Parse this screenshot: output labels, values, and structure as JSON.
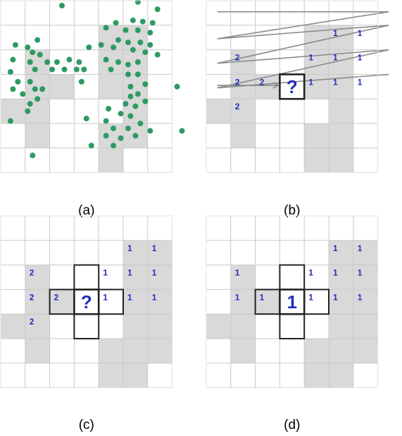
{
  "figure": {
    "colors": {
      "shaded": "#d9d9d9",
      "grid": "#c9c9c9",
      "dot": "#2e9a62",
      "label": "#1f2fb8",
      "path": "#8a8a8a",
      "outline": "#222222"
    },
    "grid_cols": 7,
    "grid_rows": 7,
    "panels": [
      {
        "caption": "(a)",
        "shaded": [
          [
            4,
            1
          ],
          [
            5,
            1
          ],
          [
            1,
            2
          ],
          [
            4,
            2
          ],
          [
            5,
            2
          ],
          [
            1,
            3
          ],
          [
            2,
            3
          ],
          [
            4,
            3
          ],
          [
            5,
            3
          ],
          [
            0,
            4
          ],
          [
            1,
            4
          ],
          [
            5,
            4
          ],
          [
            1,
            5
          ],
          [
            4,
            5
          ],
          [
            5,
            5
          ],
          [
            4,
            6
          ]
        ],
        "dots": [
          [
            2.5,
            0.2
          ],
          [
            5.6,
            0.05
          ],
          [
            6.4,
            0.35
          ],
          [
            4.7,
            0.9
          ],
          [
            5.4,
            0.8
          ],
          [
            5.8,
            0.85
          ],
          [
            6.2,
            0.9
          ],
          [
            4.3,
            1.1
          ],
          [
            5.1,
            1.2
          ],
          [
            5.6,
            1.2
          ],
          [
            6.1,
            1.3
          ],
          [
            1.5,
            1.6
          ],
          [
            4.8,
            1.6
          ],
          [
            5.2,
            1.7
          ],
          [
            5.7,
            1.7
          ],
          [
            6.1,
            1.8
          ],
          [
            0.6,
            1.8
          ],
          [
            1.1,
            1.9
          ],
          [
            4.1,
            1.8
          ],
          [
            4.6,
            1.9
          ],
          [
            5.4,
            2.0
          ],
          [
            5.9,
            2.1
          ],
          [
            6.4,
            2.2
          ],
          [
            3.6,
            1.9
          ],
          [
            1.3,
            2.1
          ],
          [
            1.6,
            2.2
          ],
          [
            0.5,
            2.4
          ],
          [
            1.2,
            2.5
          ],
          [
            1.9,
            2.5
          ],
          [
            2.3,
            2.5
          ],
          [
            2.8,
            2.4
          ],
          [
            3.2,
            2.5
          ],
          [
            4.3,
            2.4
          ],
          [
            4.8,
            2.5
          ],
          [
            5.2,
            2.6
          ],
          [
            5.6,
            2.5
          ],
          [
            1.4,
            2.8
          ],
          [
            2.1,
            2.8
          ],
          [
            2.6,
            2.8
          ],
          [
            3.1,
            2.8
          ],
          [
            3.4,
            2.8
          ],
          [
            4.5,
            2.8
          ],
          [
            0.4,
            2.9
          ],
          [
            5.2,
            3.0
          ],
          [
            5.6,
            3.0
          ],
          [
            0.7,
            3.3
          ],
          [
            1.2,
            3.3
          ],
          [
            3.3,
            3.3
          ],
          [
            0.5,
            3.6
          ],
          [
            1.4,
            3.6
          ],
          [
            1.7,
            3.6
          ],
          [
            5.3,
            3.5
          ],
          [
            5.9,
            3.4
          ],
          [
            5.6,
            3.8
          ],
          [
            7.2,
            3.5
          ],
          [
            5.3,
            3.9
          ],
          [
            0.9,
            3.8
          ],
          [
            1.5,
            4.0
          ],
          [
            1.2,
            4.2
          ],
          [
            5.1,
            4.2
          ],
          [
            5.5,
            4.3
          ],
          [
            5.9,
            4.1
          ],
          [
            4.4,
            4.4
          ],
          [
            4.9,
            4.6
          ],
          [
            5.3,
            4.7
          ],
          [
            1.1,
            4.5
          ],
          [
            3.5,
            4.8
          ],
          [
            0.4,
            4.9
          ],
          [
            4.3,
            4.9
          ],
          [
            5.7,
            5.0
          ],
          [
            4.6,
            5.2
          ],
          [
            5.2,
            5.2
          ],
          [
            6.1,
            5.3
          ],
          [
            7.4,
            5.3
          ],
          [
            4.3,
            5.5
          ],
          [
            4.9,
            5.6
          ],
          [
            5.5,
            5.5
          ],
          [
            3.7,
            5.9
          ],
          [
            4.6,
            5.9
          ],
          [
            1.3,
            6.3
          ]
        ],
        "labels": [],
        "scan_path": false,
        "focus": []
      },
      {
        "caption": "(b)",
        "shaded": [
          [
            4,
            1
          ],
          [
            5,
            1
          ],
          [
            1,
            2
          ],
          [
            4,
            2
          ],
          [
            5,
            2
          ],
          [
            1,
            3
          ],
          [
            2,
            3
          ],
          [
            4,
            3
          ],
          [
            5,
            3
          ],
          [
            0,
            4
          ],
          [
            1,
            4
          ],
          [
            5,
            4
          ],
          [
            1,
            5
          ],
          [
            4,
            5
          ],
          [
            5,
            5
          ],
          [
            4,
            6
          ],
          [
            5,
            6
          ]
        ],
        "dots": [],
        "labels": [
          {
            "c": 5,
            "r": 1,
            "text": "1"
          },
          {
            "c": 6,
            "r": 1,
            "text": "1"
          },
          {
            "c": 1,
            "r": 2,
            "text": "2"
          },
          {
            "c": 4,
            "r": 2,
            "text": "1"
          },
          {
            "c": 5,
            "r": 2,
            "text": "1"
          },
          {
            "c": 6,
            "r": 2,
            "text": "1"
          },
          {
            "c": 1,
            "r": 3,
            "text": "2"
          },
          {
            "c": 2,
            "r": 3,
            "text": "2"
          },
          {
            "c": 4,
            "r": 3,
            "text": "1"
          },
          {
            "c": 5,
            "r": 3,
            "text": "1"
          },
          {
            "c": 6,
            "r": 3,
            "text": "1"
          },
          {
            "c": 1,
            "r": 4,
            "text": "2"
          }
        ],
        "scan_path": true,
        "focus": [
          {
            "c": 3,
            "r": 3,
            "text": "?"
          }
        ]
      },
      {
        "caption": "(c)",
        "shaded": [
          [
            5,
            1
          ],
          [
            6,
            1
          ],
          [
            1,
            2
          ],
          [
            5,
            2
          ],
          [
            6,
            2
          ],
          [
            1,
            3
          ],
          [
            2,
            3
          ],
          [
            5,
            3
          ],
          [
            6,
            3
          ],
          [
            0,
            4
          ],
          [
            1,
            4
          ],
          [
            5,
            4
          ],
          [
            6,
            4
          ],
          [
            1,
            5
          ],
          [
            4,
            5
          ],
          [
            5,
            5
          ],
          [
            6,
            5
          ],
          [
            4,
            6
          ],
          [
            5,
            6
          ]
        ],
        "dots": [],
        "labels": [
          {
            "c": 5,
            "r": 1,
            "text": "1"
          },
          {
            "c": 6,
            "r": 1,
            "text": "1"
          },
          {
            "c": 1,
            "r": 2,
            "text": "2"
          },
          {
            "c": 4,
            "r": 2,
            "text": "1"
          },
          {
            "c": 5,
            "r": 2,
            "text": "1"
          },
          {
            "c": 6,
            "r": 2,
            "text": "1"
          },
          {
            "c": 1,
            "r": 3,
            "text": "2"
          },
          {
            "c": 2,
            "r": 3,
            "text": "2"
          },
          {
            "c": 4,
            "r": 3,
            "text": "1"
          },
          {
            "c": 5,
            "r": 3,
            "text": "1"
          },
          {
            "c": 6,
            "r": 3,
            "text": "1"
          },
          {
            "c": 1,
            "r": 4,
            "text": "2"
          }
        ],
        "scan_path": false,
        "focus": [
          {
            "c": 3,
            "r": 3,
            "text": "?"
          }
        ],
        "cross": true
      },
      {
        "caption": "(d)",
        "shaded": [
          [
            5,
            1
          ],
          [
            6,
            1
          ],
          [
            1,
            2
          ],
          [
            5,
            2
          ],
          [
            6,
            2
          ],
          [
            1,
            3
          ],
          [
            2,
            3
          ],
          [
            5,
            3
          ],
          [
            6,
            3
          ],
          [
            0,
            4
          ],
          [
            1,
            4
          ],
          [
            5,
            4
          ],
          [
            6,
            4
          ],
          [
            1,
            5
          ],
          [
            4,
            5
          ],
          [
            5,
            5
          ],
          [
            6,
            5
          ],
          [
            4,
            6
          ],
          [
            5,
            6
          ]
        ],
        "dots": [],
        "labels": [
          {
            "c": 5,
            "r": 1,
            "text": "1"
          },
          {
            "c": 6,
            "r": 1,
            "text": "1"
          },
          {
            "c": 1,
            "r": 2,
            "text": "1"
          },
          {
            "c": 4,
            "r": 2,
            "text": "1"
          },
          {
            "c": 5,
            "r": 2,
            "text": "1"
          },
          {
            "c": 6,
            "r": 2,
            "text": "1"
          },
          {
            "c": 1,
            "r": 3,
            "text": "1"
          },
          {
            "c": 2,
            "r": 3,
            "text": "1"
          },
          {
            "c": 4,
            "r": 3,
            "text": "1"
          },
          {
            "c": 5,
            "r": 3,
            "text": "1"
          },
          {
            "c": 6,
            "r": 3,
            "text": "1"
          }
        ],
        "scan_path": false,
        "focus": [
          {
            "c": 3,
            "r": 3,
            "text": "1"
          }
        ],
        "cross": true
      }
    ]
  }
}
